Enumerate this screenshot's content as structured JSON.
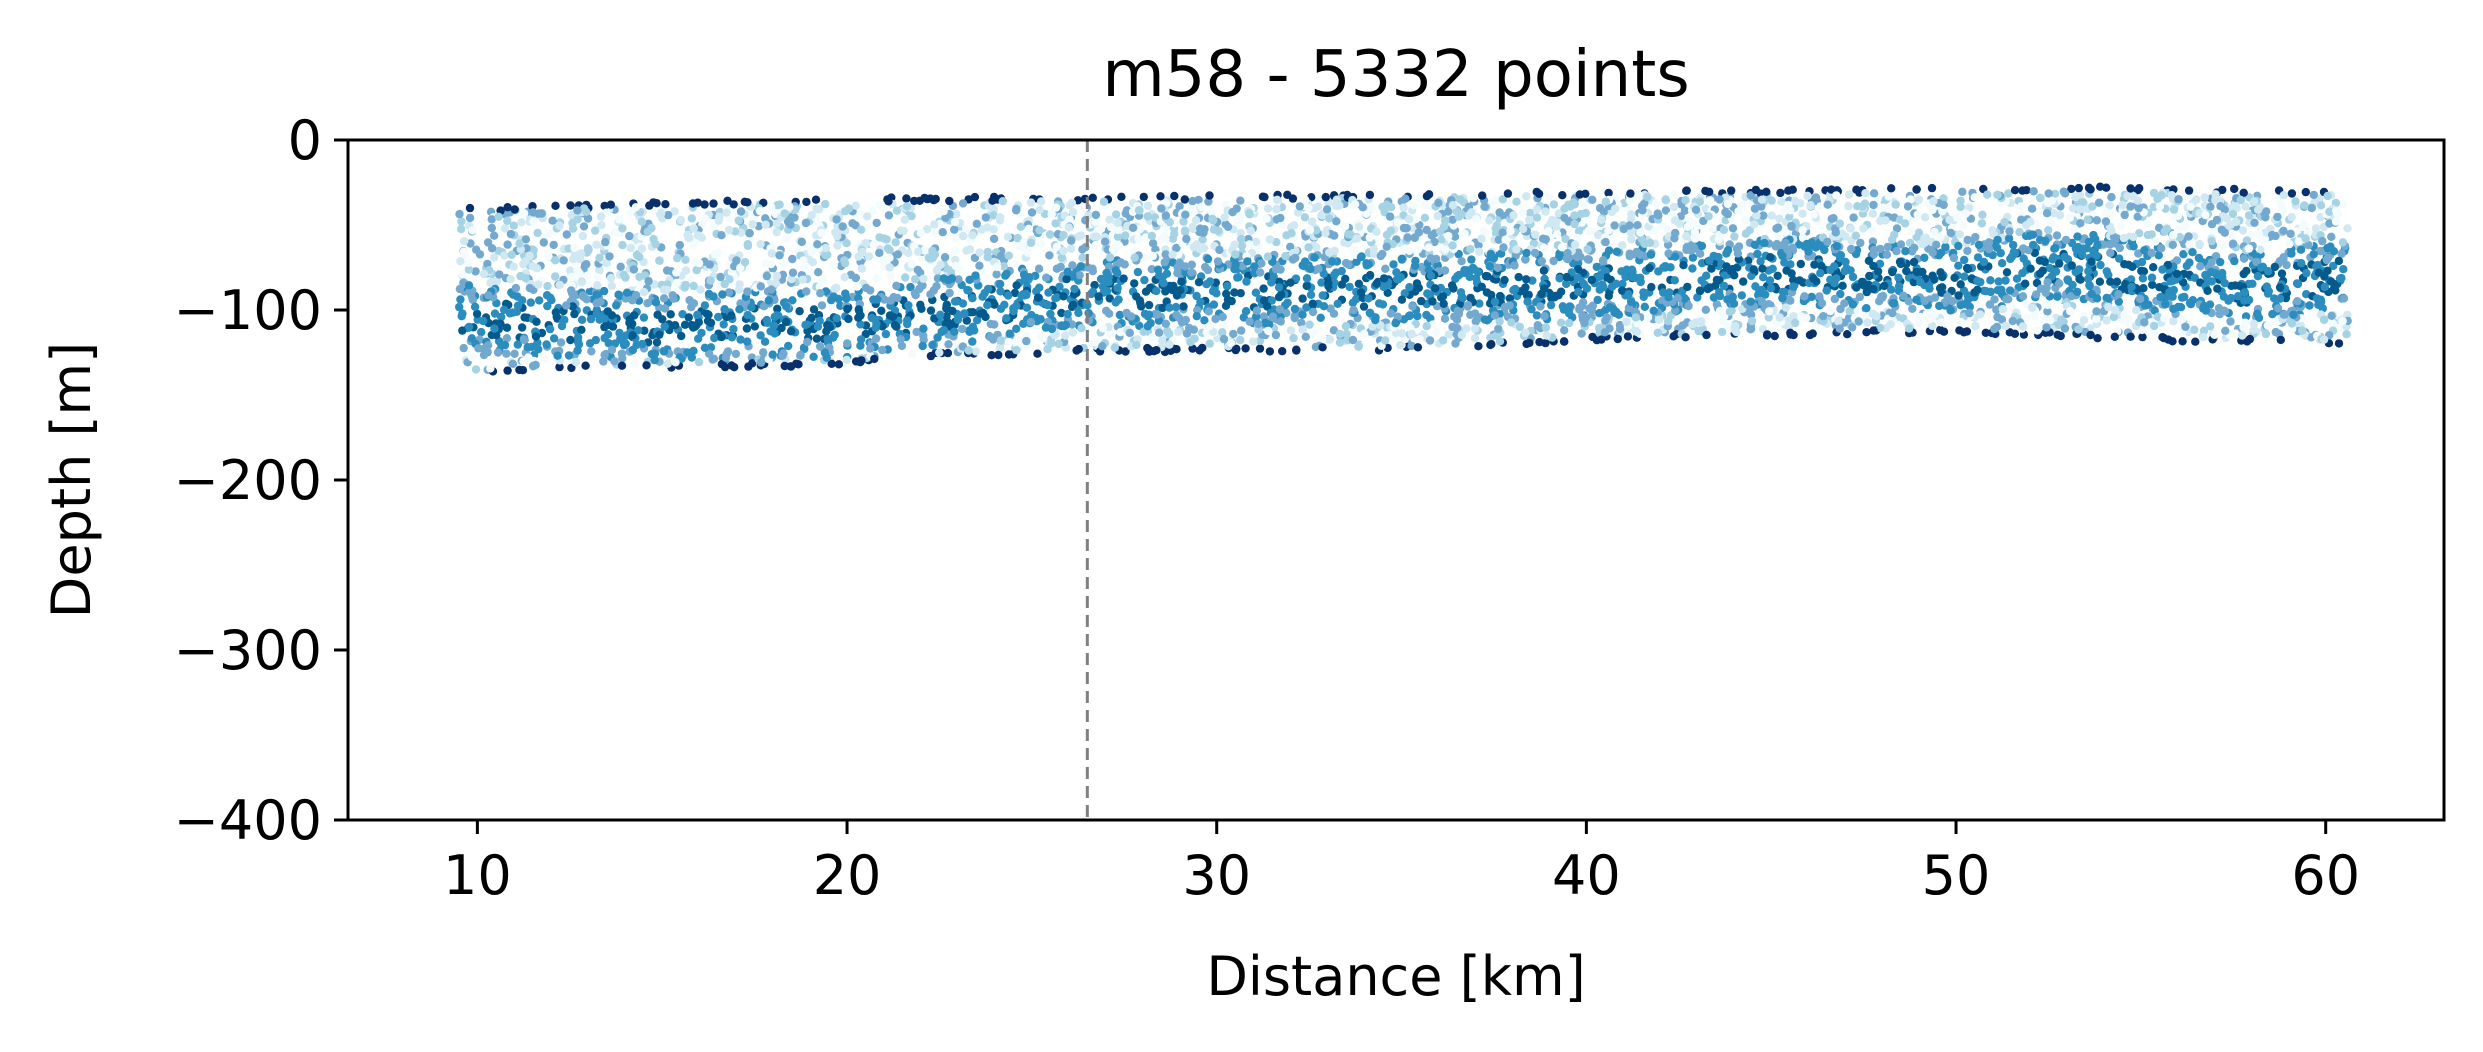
{
  "chart_data": {
    "type": "scatter",
    "title": "m58 - 5332 points",
    "xlabel": "Distance [km]",
    "ylabel": "Depth [m]",
    "xlim": [
      6.5,
      63.2
    ],
    "ylim": [
      -400,
      0
    ],
    "xticks": [
      10,
      20,
      30,
      40,
      50,
      60
    ],
    "yticks": [
      0,
      -100,
      -200,
      -300,
      -400
    ],
    "xtick_labels": [
      "10",
      "20",
      "30",
      "40",
      "50",
      "60"
    ],
    "ytick_labels": [
      "0",
      "−100",
      "−200",
      "−300",
      "−400"
    ],
    "point_count": 5332,
    "x_range": [
      9.5,
      60.6
    ],
    "reference_line": {
      "x": 26.5,
      "style": "dashed",
      "color": "#808080"
    },
    "upper_boundary": [
      [
        9.5,
        -40
      ],
      [
        12,
        -38
      ],
      [
        20,
        -34
      ],
      [
        26.5,
        -33
      ],
      [
        32,
        -32
      ],
      [
        40,
        -30
      ],
      [
        50,
        -28
      ],
      [
        53,
        -27
      ],
      [
        60.6,
        -30
      ]
    ],
    "lower_boundary": [
      [
        9.5,
        -140
      ],
      [
        12,
        -135
      ],
      [
        20,
        -133
      ],
      [
        22,
        -128
      ],
      [
        26.5,
        -125
      ],
      [
        36,
        -124
      ],
      [
        40,
        -118
      ],
      [
        50,
        -113
      ],
      [
        55,
        -118
      ],
      [
        60.6,
        -121
      ]
    ],
    "dense_band": [
      [
        9.5,
        -105
      ],
      [
        15,
        -110
      ],
      [
        20,
        -108
      ],
      [
        26.5,
        -90
      ],
      [
        35,
        -88
      ],
      [
        40,
        -85
      ],
      [
        45,
        -78
      ],
      [
        50,
        -82
      ],
      [
        53,
        -72
      ],
      [
        57,
        -88
      ],
      [
        60.6,
        -80
      ]
    ],
    "colormap": [
      "#08306b",
      "#045a8d",
      "#2b8cbe",
      "#74a9cf",
      "#a6d3e4",
      "#d0e8f2",
      "#f4fbfd"
    ],
    "grid": false
  }
}
